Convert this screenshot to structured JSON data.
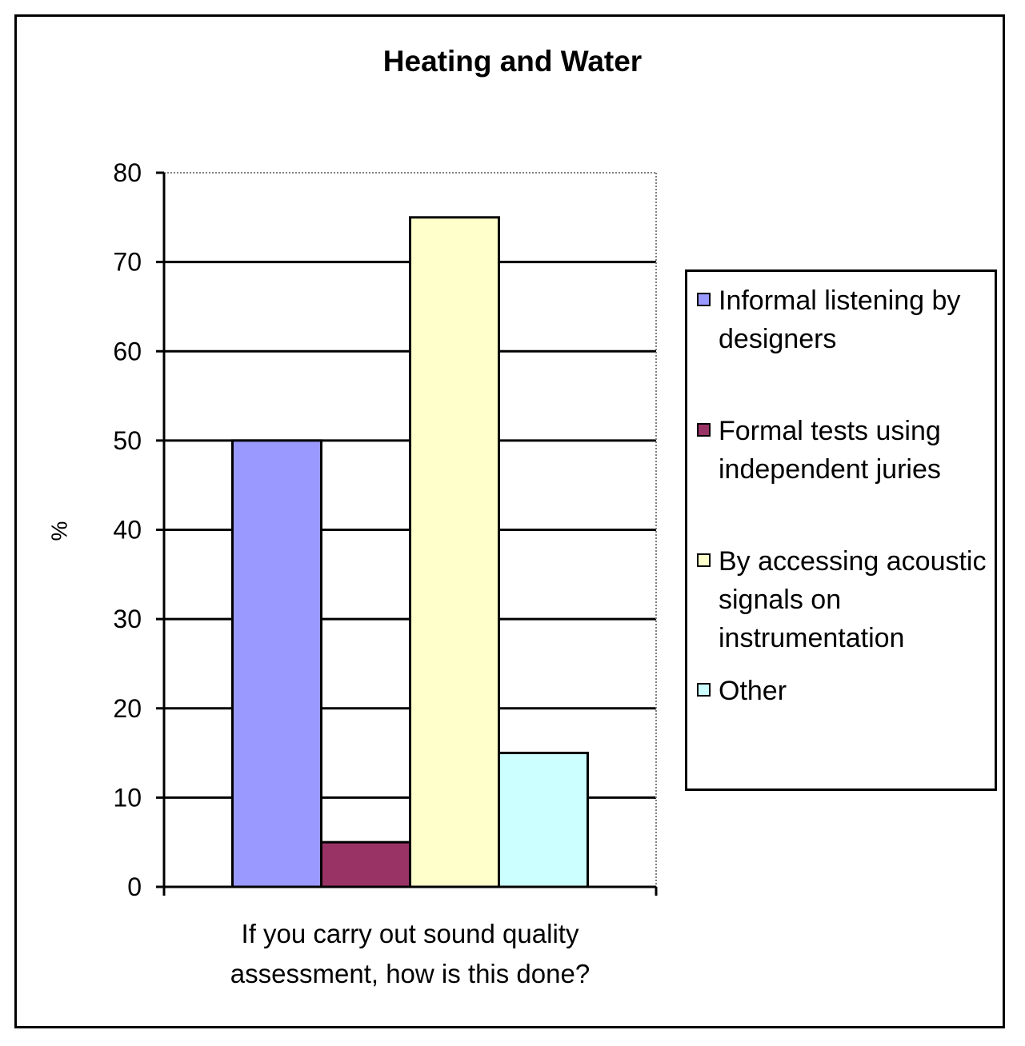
{
  "chart_data": {
    "type": "bar",
    "title": "Heating and Water",
    "xlabel": "If you carry out sound quality assessment, how is this done?",
    "ylabel": "%",
    "ylim": [
      0,
      80
    ],
    "yticks": [
      0,
      10,
      20,
      30,
      40,
      50,
      60,
      70,
      80
    ],
    "grid": true,
    "legend_position": "right",
    "series": [
      {
        "name": "Informal listening by designers",
        "values": [
          50
        ],
        "color": "#9999ff"
      },
      {
        "name": "Formal tests using independent juries",
        "values": [
          5
        ],
        "color": "#993366"
      },
      {
        "name": "By accessing acoustic signals on instrumentation",
        "values": [
          75
        ],
        "color": "#ffffcc"
      },
      {
        "name": "Other",
        "values": [
          15
        ],
        "color": "#ccffff"
      }
    ]
  }
}
